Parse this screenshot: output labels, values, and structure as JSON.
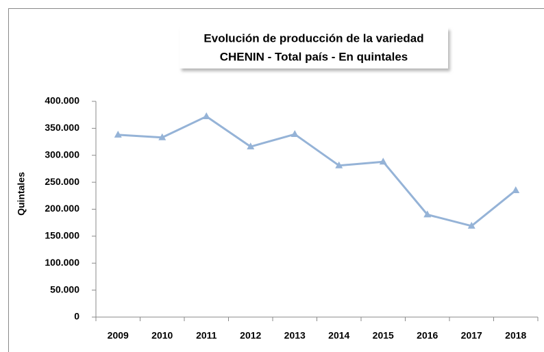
{
  "chart_data": {
    "type": "line",
    "title": [
      "Evolución de producción de la variedad",
      "CHENIN - Total país - En quintales"
    ],
    "y_label": "Quintales",
    "categories": [
      "2009",
      "2010",
      "2011",
      "2012",
      "2013",
      "2014",
      "2015",
      "2016",
      "2017",
      "2018"
    ],
    "series": [
      {
        "color": "#95b3d7",
        "values": [
          338000,
          333000,
          372000,
          316000,
          339000,
          281000,
          288000,
          190000,
          169000,
          235000
        ]
      }
    ],
    "ylim": [
      0,
      400000
    ],
    "yticks": [
      0,
      {
        "value": 50000,
        "label": "50.000"
      },
      {
        "value": 100000,
        "label": "100.000"
      },
      {
        "value": 150000,
        "label": "150.000"
      },
      {
        "value": 200000,
        "label": "200.000"
      },
      {
        "value": 250000,
        "label": "250.000"
      },
      {
        "value": 300000,
        "label": "300.000"
      },
      {
        "value": 350000,
        "label": "350.000"
      },
      {
        "value": 400000,
        "label": "400.000"
      }
    ],
    "grid": false
  }
}
